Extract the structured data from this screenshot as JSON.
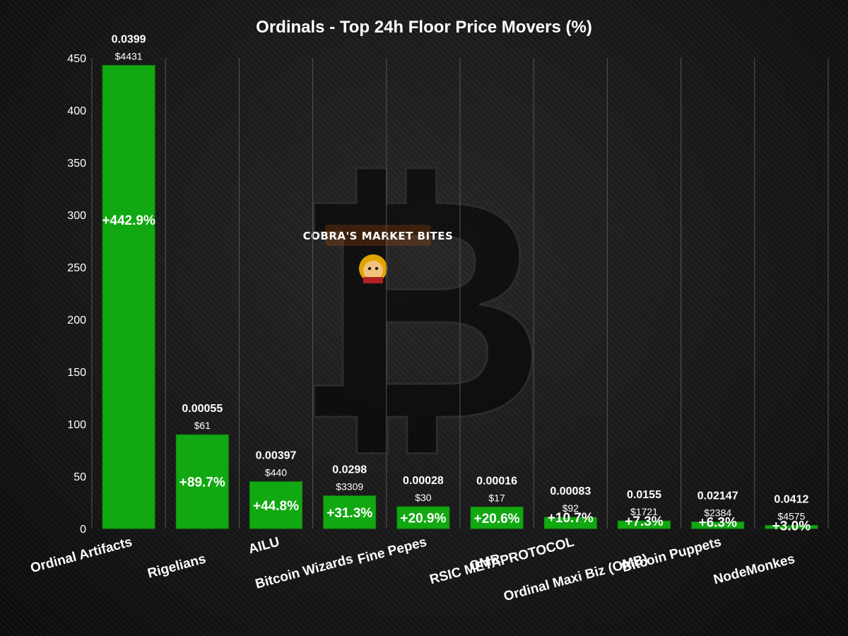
{
  "colors": {
    "bar": "#11a811",
    "bar_edge": "#0d8a0d",
    "grid": "#555555",
    "text": "#ffffff",
    "watermark_glow": "#ff6a00"
  },
  "watermark": {
    "text": "COBRA'S MARKET BITES",
    "icon": "bitcoin-logo-icon"
  },
  "chart_data": {
    "type": "bar",
    "title": "Ordinals - Top 24h Floor Price Movers (%)",
    "xlabel": "",
    "ylabel": "",
    "ylim": [
      0,
      450
    ],
    "yticks": [
      0,
      50,
      100,
      150,
      200,
      250,
      300,
      350,
      400,
      450
    ],
    "categories": [
      "Ordinal Artifacts",
      "Rigelians",
      "AILU",
      "Bitcoin Wizards",
      "Fine Pepes",
      "OMR",
      "RSIC METAPROTOCOL",
      "Ordinal Maxi Biz (OMB)",
      "Bitcoin Puppets",
      "NodeMonkes"
    ],
    "values": [
      442.9,
      89.7,
      44.8,
      31.3,
      20.9,
      20.6,
      10.7,
      7.3,
      6.3,
      3.0
    ],
    "pct_labels": [
      "+442.9%",
      "+89.7%",
      "+44.8%",
      "+31.3%",
      "+20.9%",
      "+20.6%",
      "+10.7%",
      "+7.3%",
      "+6.3%",
      "+3.0%"
    ],
    "floor_btc": [
      "0.0399",
      "0.00055",
      "0.00397",
      "0.0298",
      "0.00028",
      "0.00016",
      "0.00083",
      "0.0155",
      "0.02147",
      "0.0412"
    ],
    "floor_usd": [
      "$4431",
      "$61",
      "$440",
      "$3309",
      "$30",
      "$17",
      "$92",
      "$1721",
      "$2384",
      "$4575"
    ],
    "grid": true,
    "legend": "none"
  }
}
